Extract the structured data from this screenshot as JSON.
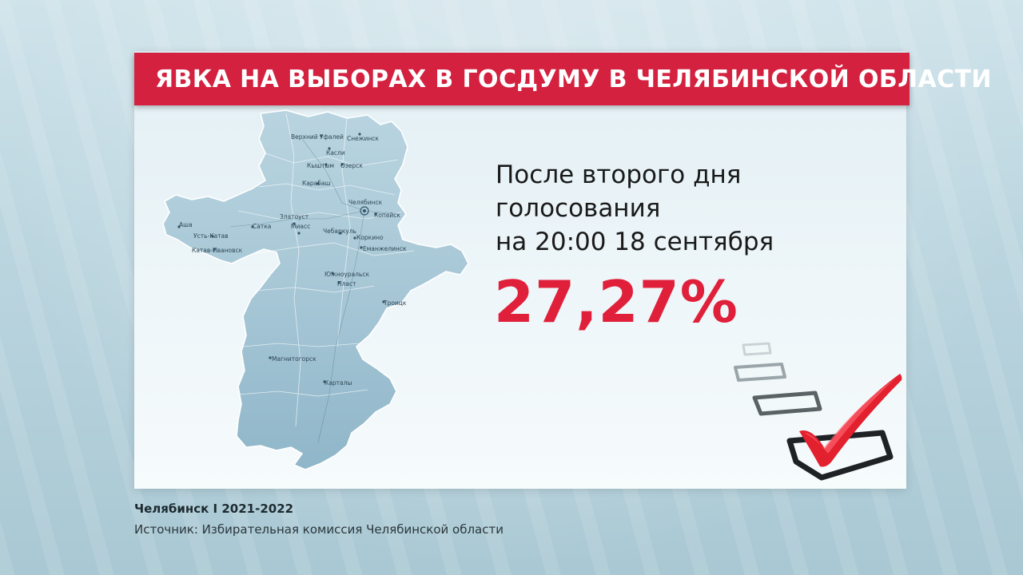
{
  "header": {
    "title": "ЯВКА НА ВЫБОРАХ В ГОСДУМУ В ЧЕЛЯБИНСКОЙ ОБЛАСТИ"
  },
  "info": {
    "line1": "После второго дня",
    "line2": "голосования",
    "line3": "на 20:00 18 сентября",
    "turnout": "27,27%"
  },
  "map": {
    "cities": {
      "verkhny_ufaley": "Верхний Уфалей",
      "snezhinsk": "Снежинск",
      "kasli": "Касли",
      "kyshtym": "Кыштым",
      "ozersk": "Озерск",
      "karabash": "Карабаш",
      "chelyabinsk": "Челябинск",
      "kopeysk": "Копейск",
      "zlatoust": "Златоуст",
      "miass": "Миасс",
      "chebarkul": "Чебаркуль",
      "asha": "Аша",
      "ust_katav": "Усть-Катав",
      "satka": "Сатка",
      "katav_ivanovsk": "Катав-Ивановск",
      "korkino": "Коркино",
      "emanzhelinsk": "Еманжелинск",
      "yuzhnouralsk": "Южноуральск",
      "plast": "Пласт",
      "troitsk": "Троицк",
      "magnitogorsk": "Магнитогорск",
      "kartaly": "Карталы"
    }
  },
  "footer": {
    "title": "Челябинск I 2021-2022",
    "source": "Источник: Избирательная комиссия Челябинской области"
  },
  "colors": {
    "accent": "#d3213f",
    "turnout": "#e0203b",
    "map_fill": "#a9c9d9"
  }
}
